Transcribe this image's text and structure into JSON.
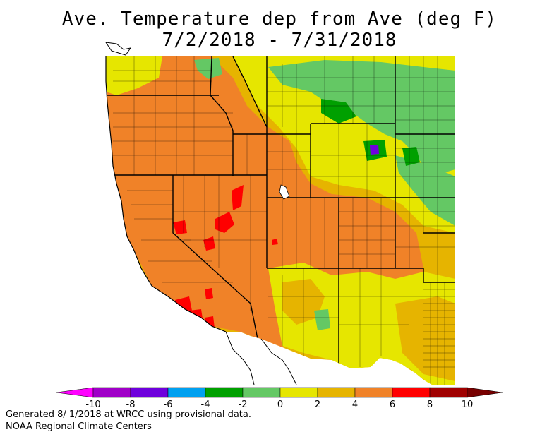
{
  "title": {
    "line1": "Ave. Temperature dep from Ave (deg F)",
    "line2": "7/2/2018 - 7/31/2018"
  },
  "legend": {
    "ticks": [
      "-10",
      "-8",
      "-6",
      "-4",
      "-2",
      "0",
      "2",
      "4",
      "6",
      "8",
      "10"
    ],
    "colors": [
      "#ff00ff",
      "#a000c8",
      "#6e00dc",
      "#00a0f0",
      "#00a000",
      "#64c864",
      "#e6e600",
      "#e6b400",
      "#f08228",
      "#ff0000",
      "#a00000",
      "#780000"
    ]
  },
  "map_colors": {
    "ocean": "#ffffff",
    "warm_orange": "#f08228",
    "gold": "#e6b400",
    "yellow": "#e6e600",
    "light_green": "#64c864",
    "green": "#00a000",
    "red": "#ff0000",
    "blue": "#6e00dc"
  },
  "footer": {
    "line1": "Generated 8/ 1/2018 at WRCC using provisional data.",
    "line2": "NOAA Regional Climate Centers"
  }
}
